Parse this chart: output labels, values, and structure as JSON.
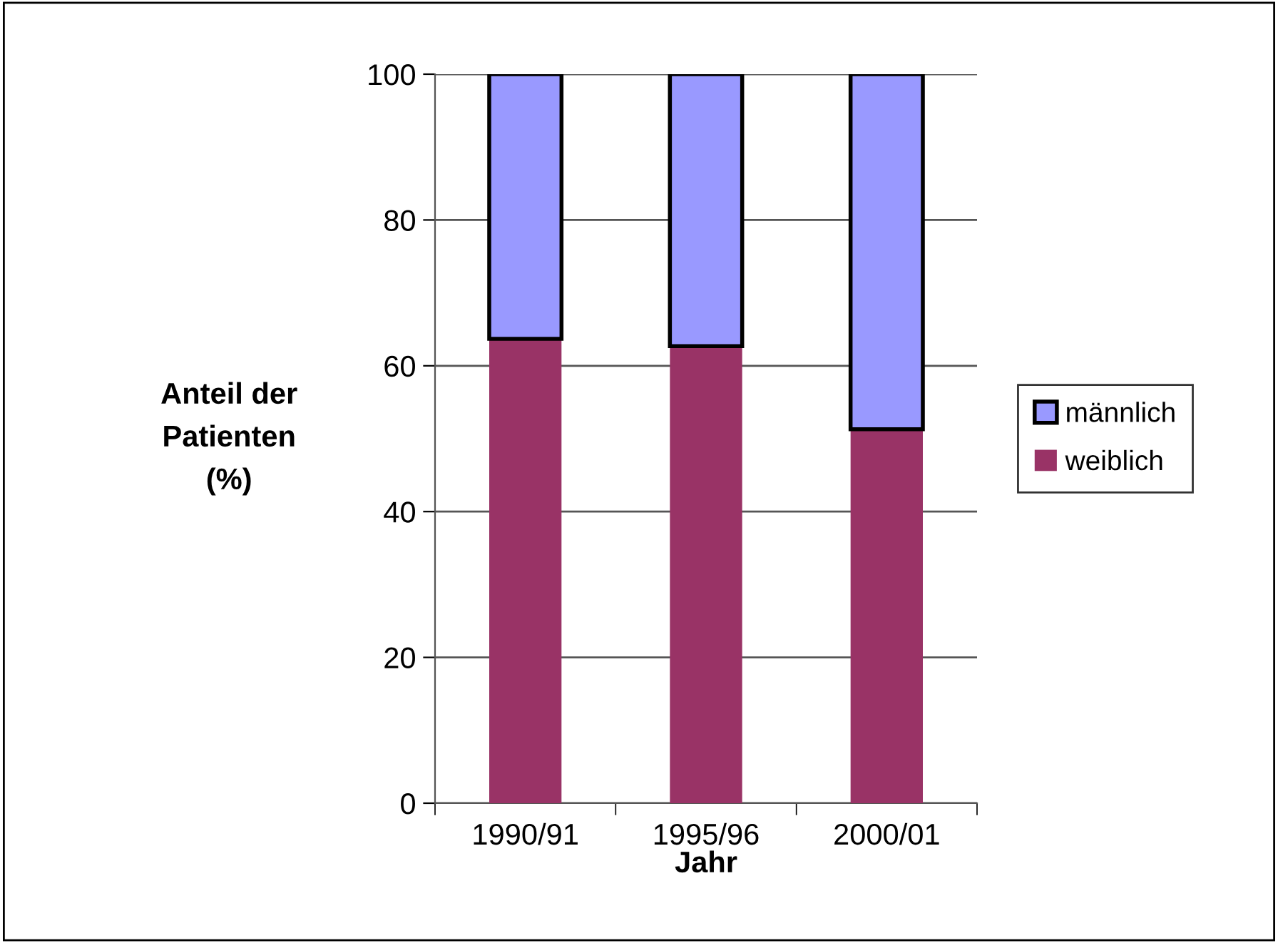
{
  "chart_data": {
    "type": "bar",
    "stacked": true,
    "xlabel": "Jahr",
    "ylabel": "Anteil der\nPatienten\n(%)",
    "categories": [
      "1990/91",
      "1995/96",
      "2000/01"
    ],
    "series": [
      {
        "name": "weiblich",
        "color": "#993366",
        "values": [
          63.7,
          62.7,
          51.3
        ]
      },
      {
        "name": "männlich",
        "color": "#9999ff",
        "values": [
          36.3,
          37.3,
          48.7
        ]
      }
    ],
    "ylim": [
      0,
      100
    ],
    "yticks": [
      0,
      20,
      40,
      60,
      80,
      100
    ],
    "grid": "y",
    "legend": "right"
  }
}
